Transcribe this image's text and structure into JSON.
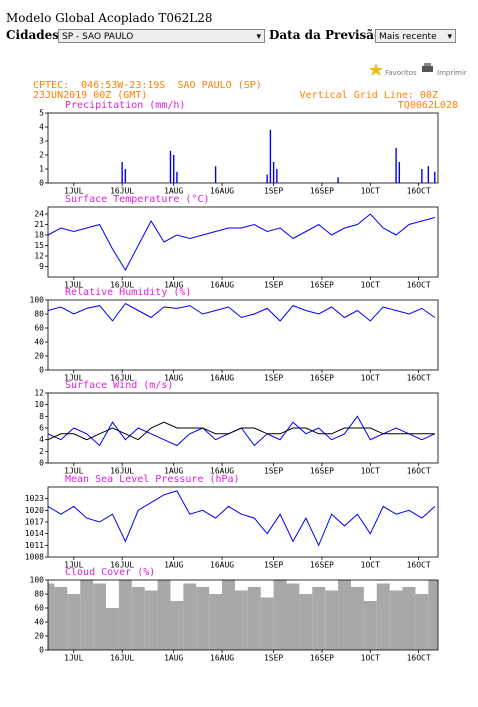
{
  "header": {
    "title": "Modelo Global Acoplado T062L28",
    "city_label": "Cidades:",
    "city_value": "SP - SAO PAULO",
    "date_label": "Data da Previsão:",
    "date_value": "Mais recente",
    "favorites": "Favoritos",
    "print": "Imprimir"
  },
  "meteogram": {
    "location": "CPTEC:  046:53W-23:19S  SAO PAULO (SP)",
    "run": "23JUN2019 00Z (GMT)",
    "grid_note": "Vertical Grid Line: 00Z",
    "model": "TQ0062L028"
  },
  "chart_data": [
    {
      "type": "bar",
      "title": "Precipitation (mm/h)",
      "color": "#0000ff",
      "x": [
        "16JUL",
        "17JUL",
        "31JUL",
        "1AUG",
        "2AUG",
        "14AUG",
        "30AUG",
        "31AUG",
        "1SEP",
        "2SEP",
        "21SEP",
        "9OCT",
        "10OCT",
        "17OCT",
        "19OCT",
        "21OCT"
      ],
      "values": [
        1.5,
        1.0,
        2.3,
        2.0,
        0.8,
        1.2,
        0.6,
        3.8,
        1.5,
        1.0,
        0.4,
        2.5,
        1.5,
        1.0,
        1.2,
        0.8
      ],
      "xlim": [
        "23JUN",
        "22OCT"
      ],
      "xticks": [
        "1JUL",
        "16JUL",
        "1AUG",
        "16AUG",
        "1SEP",
        "16SEP",
        "1OCT",
        "16OCT"
      ],
      "ylim": [
        0,
        5
      ],
      "yticks": [
        0,
        1,
        2,
        3,
        4,
        5
      ]
    },
    {
      "type": "line",
      "title": "Surface Temperature (°C)",
      "color": "#0000ff",
      "x": [
        "23JUN",
        "27JUN",
        "1JUL",
        "5JUL",
        "9JUL",
        "13JUL",
        "17JUL",
        "21JUL",
        "25JUL",
        "29JUL",
        "2AUG",
        "6AUG",
        "10AUG",
        "14AUG",
        "18AUG",
        "22AUG",
        "26AUG",
        "30AUG",
        "3SEP",
        "7SEP",
        "11SEP",
        "15SEP",
        "19SEP",
        "23SEP",
        "27SEP",
        "1OCT",
        "5OCT",
        "9OCT",
        "13OCT",
        "17OCT",
        "21OCT"
      ],
      "values": [
        18,
        20,
        19,
        20,
        21,
        14,
        8,
        15,
        22,
        16,
        18,
        17,
        18,
        19,
        20,
        20,
        21,
        19,
        20,
        17,
        19,
        21,
        18,
        20,
        21,
        24,
        20,
        18,
        21,
        22,
        23
      ],
      "xlim": [
        "23JUN",
        "22OCT"
      ],
      "xticks": [
        "1JUL",
        "16JUL",
        "1AUG",
        "16AUG",
        "1SEP",
        "16SEP",
        "1OCT",
        "16OCT"
      ],
      "ylim": [
        6,
        26
      ],
      "yticks": [
        9,
        12,
        15,
        18,
        21,
        24
      ]
    },
    {
      "type": "line",
      "title": "Relative Humidity (%)",
      "color": "#0000ff",
      "x": [
        "23JUN",
        "27JUN",
        "1JUL",
        "5JUL",
        "9JUL",
        "13JUL",
        "17JUL",
        "21JUL",
        "25JUL",
        "29JUL",
        "2AUG",
        "6AUG",
        "10AUG",
        "14AUG",
        "18AUG",
        "22AUG",
        "26AUG",
        "30AUG",
        "3SEP",
        "7SEP",
        "11SEP",
        "15SEP",
        "19SEP",
        "23SEP",
        "27SEP",
        "1OCT",
        "5OCT",
        "9OCT",
        "13OCT",
        "17OCT",
        "21OCT"
      ],
      "values": [
        85,
        90,
        80,
        88,
        92,
        70,
        95,
        85,
        75,
        90,
        88,
        92,
        80,
        85,
        90,
        75,
        80,
        88,
        70,
        92,
        85,
        80,
        90,
        75,
        85,
        70,
        90,
        85,
        80,
        88,
        75
      ],
      "xlim": [
        "23JUN",
        "22OCT"
      ],
      "xticks": [
        "1JUL",
        "16JUL",
        "1AUG",
        "16AUG",
        "1SEP",
        "16SEP",
        "1OCT",
        "16OCT"
      ],
      "ylim": [
        0,
        100
      ],
      "yticks": [
        0,
        20,
        40,
        60,
        80,
        100
      ]
    },
    {
      "type": "line",
      "title": "Surface Wind (m/s)",
      "x": [
        "23JUN",
        "27JUN",
        "1JUL",
        "5JUL",
        "9JUL",
        "13JUL",
        "17JUL",
        "21JUL",
        "25JUL",
        "29JUL",
        "2AUG",
        "6AUG",
        "10AUG",
        "14AUG",
        "18AUG",
        "22AUG",
        "26AUG",
        "30AUG",
        "3SEP",
        "7SEP",
        "11SEP",
        "15SEP",
        "19SEP",
        "23SEP",
        "27SEP",
        "1OCT",
        "5OCT",
        "9OCT",
        "13OCT",
        "17OCT",
        "21OCT"
      ],
      "series": [
        {
          "color": "#0000ff",
          "values": [
            5,
            4,
            6,
            5,
            3,
            7,
            4,
            6,
            5,
            4,
            3,
            5,
            6,
            4,
            5,
            6,
            3,
            5,
            4,
            7,
            5,
            6,
            4,
            5,
            8,
            4,
            5,
            6,
            5,
            4,
            5
          ]
        },
        {
          "color": "#000000",
          "values": [
            4,
            5,
            5,
            4,
            5,
            6,
            5,
            4,
            6,
            7,
            6,
            6,
            6,
            5,
            5,
            6,
            6,
            5,
            5,
            6,
            6,
            5,
            5,
            6,
            6,
            6,
            5,
            5,
            5,
            5,
            5
          ]
        }
      ],
      "xlim": [
        "23JUN",
        "22OCT"
      ],
      "xticks": [
        "1JUL",
        "16JUL",
        "1AUG",
        "16AUG",
        "1SEP",
        "16SEP",
        "1OCT",
        "16OCT"
      ],
      "ylim": [
        0,
        12
      ],
      "yticks": [
        0,
        2,
        4,
        6,
        8,
        10,
        12
      ]
    },
    {
      "type": "line",
      "title": "Mean Sea Level Pressure (hPa)",
      "color": "#0000ff",
      "x": [
        "23JUN",
        "27JUN",
        "1JUL",
        "5JUL",
        "9JUL",
        "13JUL",
        "17JUL",
        "21JUL",
        "25JUL",
        "29JUL",
        "2AUG",
        "6AUG",
        "10AUG",
        "14AUG",
        "18AUG",
        "22AUG",
        "26AUG",
        "30AUG",
        "3SEP",
        "7SEP",
        "11SEP",
        "15SEP",
        "19SEP",
        "23SEP",
        "27SEP",
        "1OCT",
        "5OCT",
        "9OCT",
        "13OCT",
        "17OCT",
        "21OCT"
      ],
      "values": [
        1021,
        1019,
        1021,
        1018,
        1017,
        1019,
        1012,
        1020,
        1022,
        1024,
        1025,
        1019,
        1020,
        1018,
        1021,
        1019,
        1018,
        1014,
        1019,
        1012,
        1018,
        1011,
        1019,
        1016,
        1019,
        1014,
        1021,
        1019,
        1020,
        1018,
        1021
      ],
      "xlim": [
        "23JUN",
        "22OCT"
      ],
      "xticks": [
        "1JUL",
        "16JUL",
        "1AUG",
        "16AUG",
        "1SEP",
        "16SEP",
        "1OCT",
        "16OCT"
      ],
      "ylim": [
        1008,
        1026
      ],
      "yticks": [
        1008,
        1011,
        1014,
        1017,
        1020,
        1023
      ]
    },
    {
      "type": "area",
      "title": "Cloud Cover (%)",
      "color": "#a8a8a8",
      "x": [
        "23JUN",
        "27JUN",
        "1JUL",
        "5JUL",
        "9JUL",
        "13JUL",
        "17JUL",
        "21JUL",
        "25JUL",
        "29JUL",
        "2AUG",
        "6AUG",
        "10AUG",
        "14AUG",
        "18AUG",
        "22AUG",
        "26AUG",
        "30AUG",
        "3SEP",
        "7SEP",
        "11SEP",
        "15SEP",
        "19SEP",
        "23SEP",
        "27SEP",
        "1OCT",
        "5OCT",
        "9OCT",
        "13OCT",
        "17OCT",
        "21OCT"
      ],
      "values": [
        95,
        90,
        80,
        100,
        95,
        60,
        100,
        90,
        85,
        100,
        70,
        95,
        90,
        80,
        100,
        85,
        90,
        75,
        100,
        95,
        80,
        90,
        85,
        100,
        90,
        70,
        95,
        85,
        90,
        80,
        100
      ],
      "xlim": [
        "23JUN",
        "22OCT"
      ],
      "xticks": [
        "1JUL",
        "16JUL",
        "1AUG",
        "16AUG",
        "1SEP",
        "16SEP",
        "1OCT",
        "16OCT"
      ],
      "ylim": [
        0,
        100
      ],
      "yticks": [
        0,
        20,
        40,
        60,
        80,
        100
      ]
    }
  ]
}
